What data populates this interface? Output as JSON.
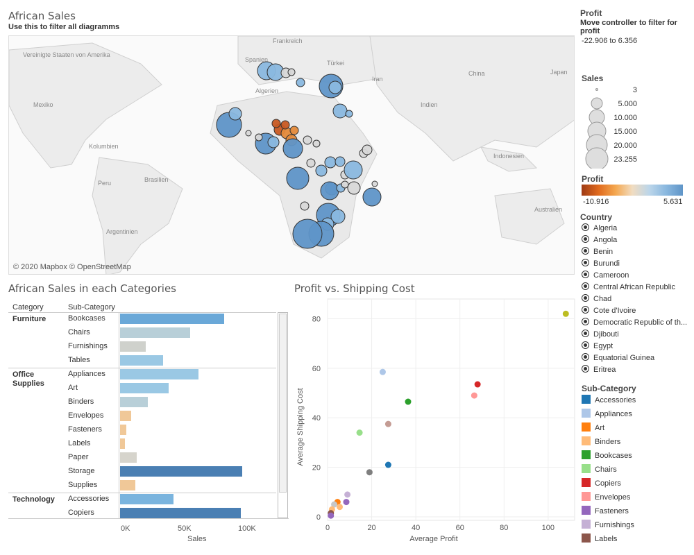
{
  "dashboard": {
    "title": "African Sales",
    "subtitle": "Use this to filter all diagramms"
  },
  "map": {
    "credit": "© 2020 Mapbox © OpenStreetMap",
    "labels": [
      "Vereinigte Staaten von Amerika",
      "Mexiko",
      "Kolumbien",
      "Peru",
      "Brasilien",
      "Argentinien",
      "Frankreich",
      "Spanien",
      "Algerien",
      "Türkei",
      "Iran",
      "China",
      "Japan",
      "Indien",
      "Indonesien",
      "Australien"
    ]
  },
  "bar_section": {
    "title": "African Sales in each Categories",
    "col_category": "Category",
    "col_subcategory": "Sub-Category",
    "axis_label": "Sales",
    "categories": [
      {
        "name": "Furniture",
        "rows": [
          {
            "sub": "Bookcases",
            "value": 82000,
            "color": "#6aa8d8"
          },
          {
            "sub": "Chairs",
            "value": 55000,
            "color": "#b8cfd8"
          },
          {
            "sub": "Furnishings",
            "value": 20000,
            "color": "#cfd1cc"
          },
          {
            "sub": "Tables",
            "value": 34000,
            "color": "#9ac8e4"
          }
        ]
      },
      {
        "name": "Office Supplies",
        "rows": [
          {
            "sub": "Appliances",
            "value": 62000,
            "color": "#9ac8e4"
          },
          {
            "sub": "Art",
            "value": 38000,
            "color": "#9ac8e4"
          },
          {
            "sub": "Binders",
            "value": 22000,
            "color": "#b8cfd8"
          },
          {
            "sub": "Envelopes",
            "value": 9000,
            "color": "#f0c898"
          },
          {
            "sub": "Fasteners",
            "value": 5000,
            "color": "#f0c898"
          },
          {
            "sub": "Labels",
            "value": 4000,
            "color": "#f0c898"
          },
          {
            "sub": "Paper",
            "value": 13000,
            "color": "#d6d4cc"
          },
          {
            "sub": "Storage",
            "value": 96000,
            "color": "#4a7fb3"
          },
          {
            "sub": "Supplies",
            "value": 12000,
            "color": "#f0c898"
          }
        ]
      },
      {
        "name": "Technology",
        "rows": [
          {
            "sub": "Accessories",
            "value": 42000,
            "color": "#7ab4de"
          },
          {
            "sub": "Copiers",
            "value": 95000,
            "color": "#4a7fb3"
          }
        ]
      }
    ],
    "ticks": [
      "0K",
      "50K",
      "100K"
    ]
  },
  "scatter_section": {
    "title": "Profit vs. Shipping Cost",
    "xlabel": "Average Profit",
    "ylabel": "Average Shipping Cost",
    "xticks": [
      "0",
      "20",
      "40",
      "60",
      "80",
      "100"
    ],
    "yticks": [
      "0",
      "20",
      "40",
      "60",
      "80"
    ]
  },
  "chart_data": [
    {
      "type": "bar",
      "categories": [
        "Bookcases",
        "Chairs",
        "Furnishings",
        "Tables",
        "Appliances",
        "Art",
        "Binders",
        "Envelopes",
        "Fasteners",
        "Labels",
        "Paper",
        "Storage",
        "Supplies",
        "Accessories",
        "Copiers"
      ],
      "values": [
        82000,
        55000,
        20000,
        34000,
        62000,
        38000,
        22000,
        9000,
        5000,
        4000,
        13000,
        96000,
        12000,
        42000,
        95000
      ],
      "title": "African Sales in each Categories",
      "xlabel": "Sales",
      "xlim": [
        0,
        110000
      ]
    },
    {
      "type": "scatter",
      "title": "Profit vs. Shipping Cost",
      "xlabel": "Average Profit",
      "ylabel": "Average Shipping Cost",
      "xlim": [
        0,
        112
      ],
      "ylim": [
        0,
        86
      ],
      "points": [
        {
          "x": 108,
          "y": 82,
          "color": "#bcbd22"
        },
        {
          "x": 68,
          "y": 53.5,
          "color": "#d62728"
        },
        {
          "x": 66.5,
          "y": 49,
          "color": "#ff9896"
        },
        {
          "x": 25,
          "y": 58.5,
          "color": "#aec7e8"
        },
        {
          "x": 36.5,
          "y": 46.5,
          "color": "#2ca02c"
        },
        {
          "x": 14.5,
          "y": 34,
          "color": "#98df8a"
        },
        {
          "x": 27.5,
          "y": 37.5,
          "color": "#c49c94"
        },
        {
          "x": 27.5,
          "y": 21,
          "color": "#1f77b4"
        },
        {
          "x": 19,
          "y": 18,
          "color": "#7f7f7f"
        },
        {
          "x": 9,
          "y": 9,
          "color": "#c5b0d5"
        },
        {
          "x": 8.5,
          "y": 6,
          "color": "#9467bd"
        },
        {
          "x": 4.5,
          "y": 6,
          "color": "#ff7f0e"
        },
        {
          "x": 5.5,
          "y": 4,
          "color": "#ffbb78"
        },
        {
          "x": 3,
          "y": 5,
          "color": "#c7c7c7"
        },
        {
          "x": 2,
          "y": 3,
          "color": "#ffbb78"
        },
        {
          "x": 1.5,
          "y": 1.5,
          "color": "#8c564b"
        },
        {
          "x": 1.5,
          "y": 0.5,
          "color": "#9467bd"
        }
      ]
    }
  ],
  "filters": {
    "profit_filter": {
      "title": "Profit",
      "desc": "Move controller to filter for profit",
      "range": "-22.906 to 6.356"
    },
    "sales_legend": {
      "title": "Sales",
      "items": [
        "3",
        "5.000",
        "10.000",
        "15.000",
        "20.000",
        "23.255"
      ]
    },
    "profit_legend": {
      "title": "Profit",
      "min": "-10.916",
      "max": "5.631"
    },
    "country": {
      "title": "Country",
      "items": [
        "Algeria",
        "Angola",
        "Benin",
        "Burundi",
        "Cameroon",
        "Central African Republic",
        "Chad",
        "Cote d'Ivoire",
        "Democratic Republic of th...",
        "Djibouti",
        "Egypt",
        "Equatorial Guinea",
        "Eritrea"
      ]
    },
    "subcategory": {
      "title": "Sub-Category",
      "items": [
        {
          "name": "Accessories",
          "color": "#1f77b4"
        },
        {
          "name": "Appliances",
          "color": "#aec7e8"
        },
        {
          "name": "Art",
          "color": "#ff7f0e"
        },
        {
          "name": "Binders",
          "color": "#ffbb78"
        },
        {
          "name": "Bookcases",
          "color": "#2ca02c"
        },
        {
          "name": "Chairs",
          "color": "#98df8a"
        },
        {
          "name": "Copiers",
          "color": "#d62728"
        },
        {
          "name": "Envelopes",
          "color": "#ff9896"
        },
        {
          "name": "Fasteners",
          "color": "#9467bd"
        },
        {
          "name": "Furnishings",
          "color": "#c5b0d5"
        },
        {
          "name": "Labels",
          "color": "#8c564b"
        }
      ]
    }
  }
}
